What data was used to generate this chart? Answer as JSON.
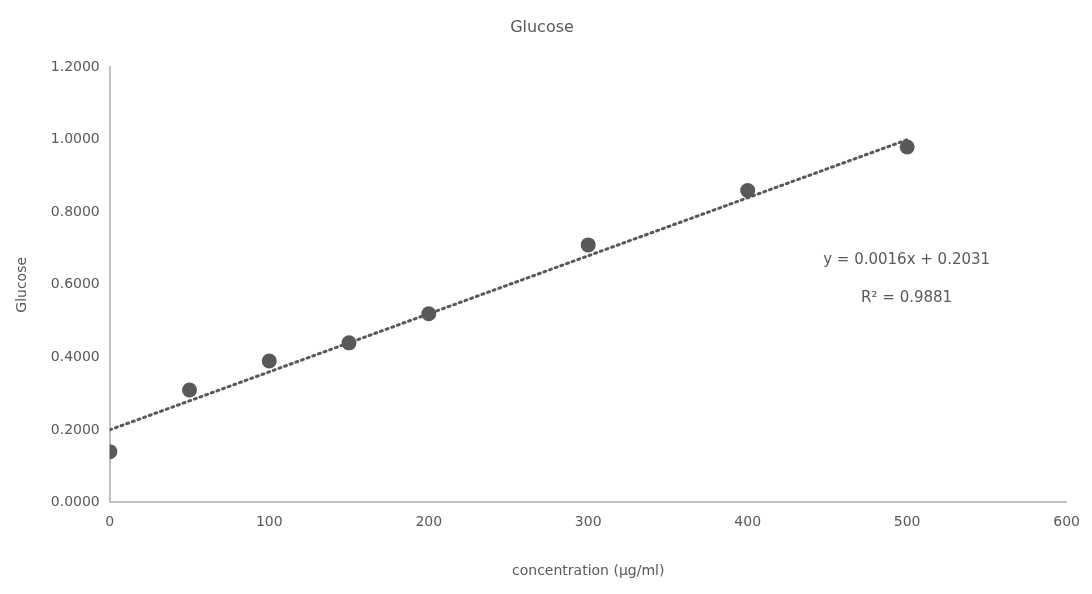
{
  "chart_data": {
    "type": "scatter",
    "title": "Glucose",
    "xlabel": "concentration (μg/ml)",
    "ylabel": "Glucose",
    "x": [
      0,
      50,
      100,
      150,
      200,
      300,
      400,
      500
    ],
    "series": [
      {
        "color": "#595959",
        "values": [
          0.14,
          0.31,
          0.39,
          0.44,
          0.52,
          0.71,
          0.86,
          0.98
        ]
      },
      {
        "type": "line",
        "color": "#595959",
        "line_style": "dotted",
        "marker": "none",
        "x": [
          0,
          500
        ],
        "values": [
          0.2,
          1.0
        ]
      }
    ],
    "marker": "circle",
    "xlim": [
      0,
      600
    ],
    "xticks": [
      0,
      100,
      200,
      300,
      400,
      500,
      600
    ],
    "ylim": [
      0,
      1.2
    ],
    "yticks": [
      {
        "value": 0,
        "label": "0.0000"
      },
      {
        "value": 0.2,
        "label": "0.2000"
      },
      {
        "value": 0.4,
        "label": "0.4000"
      },
      {
        "value": 0.6,
        "label": "0.6000"
      },
      {
        "value": 0.8,
        "label": "0.8000"
      },
      {
        "value": 1.0,
        "label": "1.0000"
      },
      {
        "value": 1.2,
        "label": "1.2000"
      }
    ],
    "grid": false,
    "legend": false,
    "annotations": [
      "y = 0.0016x + 0.2031",
      "R² = 0.9881"
    ]
  }
}
